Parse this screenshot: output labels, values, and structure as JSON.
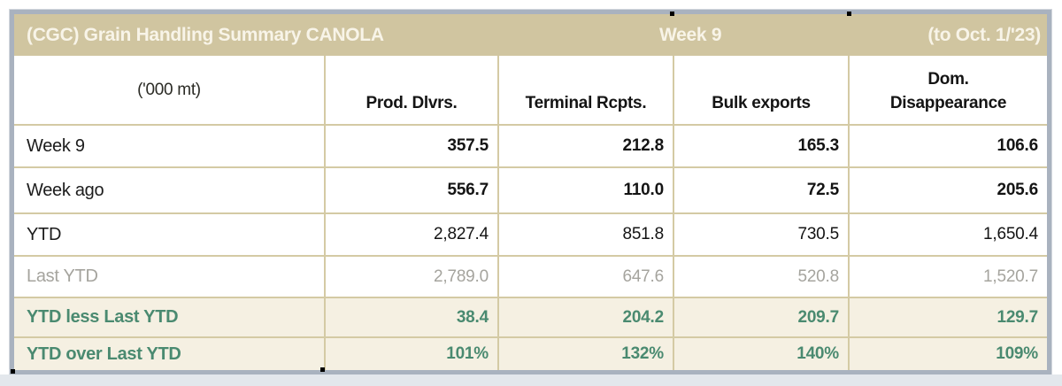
{
  "title_bar": {
    "title": "(CGC) Grain Handling Summary CANOLA",
    "week": "Week 9",
    "to_date": "(to Oct. 1/'23)"
  },
  "table": {
    "unit_label": "('000 mt)",
    "columns": [
      "Prod. Dlvrs.",
      "Terminal Rcpts.",
      "Bulk exports",
      "Dom.\nDisappearance"
    ],
    "rows": [
      {
        "label": "Week 9",
        "values": [
          "357.5",
          "212.8",
          "165.3",
          "106.6"
        ]
      },
      {
        "label": "Week ago",
        "values": [
          "556.7",
          "110.0",
          "72.5",
          "205.6"
        ]
      },
      {
        "label": "YTD",
        "values": [
          "2,827.4",
          "851.8",
          "730.5",
          "1,650.4"
        ]
      },
      {
        "label": "Last YTD",
        "values": [
          "2,789.0",
          "647.6",
          "520.8",
          "1,520.7"
        ]
      },
      {
        "label": "YTD less Last YTD",
        "values": [
          "38.4",
          "204.2",
          "209.7",
          "129.7"
        ]
      },
      {
        "label": "YTD over Last YTD",
        "values": [
          "101%",
          "132%",
          "140%",
          "109%"
        ]
      }
    ]
  },
  "chart_data": {
    "type": "table",
    "title": "(CGC) Grain Handling Summary CANOLA — Week 9 (to Oct. 1/'23)",
    "unit": "'000 mt",
    "columns": [
      "Prod. Dlvrs.",
      "Terminal Rcpts.",
      "Bulk exports",
      "Dom. Disappearance"
    ],
    "rows": [
      {
        "label": "Week 9",
        "values": [
          357.5,
          212.8,
          165.3,
          106.6
        ]
      },
      {
        "label": "Week ago",
        "values": [
          556.7,
          110.0,
          72.5,
          205.6
        ]
      },
      {
        "label": "YTD",
        "values": [
          2827.4,
          851.8,
          730.5,
          1650.4
        ]
      },
      {
        "label": "Last YTD",
        "values": [
          2789.0,
          647.6,
          520.8,
          1520.7
        ]
      },
      {
        "label": "YTD less Last YTD",
        "values": [
          38.4,
          204.2,
          209.7,
          129.7
        ]
      },
      {
        "label": "YTD over Last YTD",
        "values": [
          "101%",
          "132%",
          "140%",
          "109%"
        ]
      }
    ]
  },
  "colors": {
    "header_bg": "#d0c5a0",
    "header_text": "#f8f4e8",
    "gridline": "#d4caa4",
    "highlight_row_bg": "#f5f0e2",
    "accent_green": "#4a8a70",
    "muted_gray": "#a5a49e",
    "frame": "#a9b2bf"
  }
}
